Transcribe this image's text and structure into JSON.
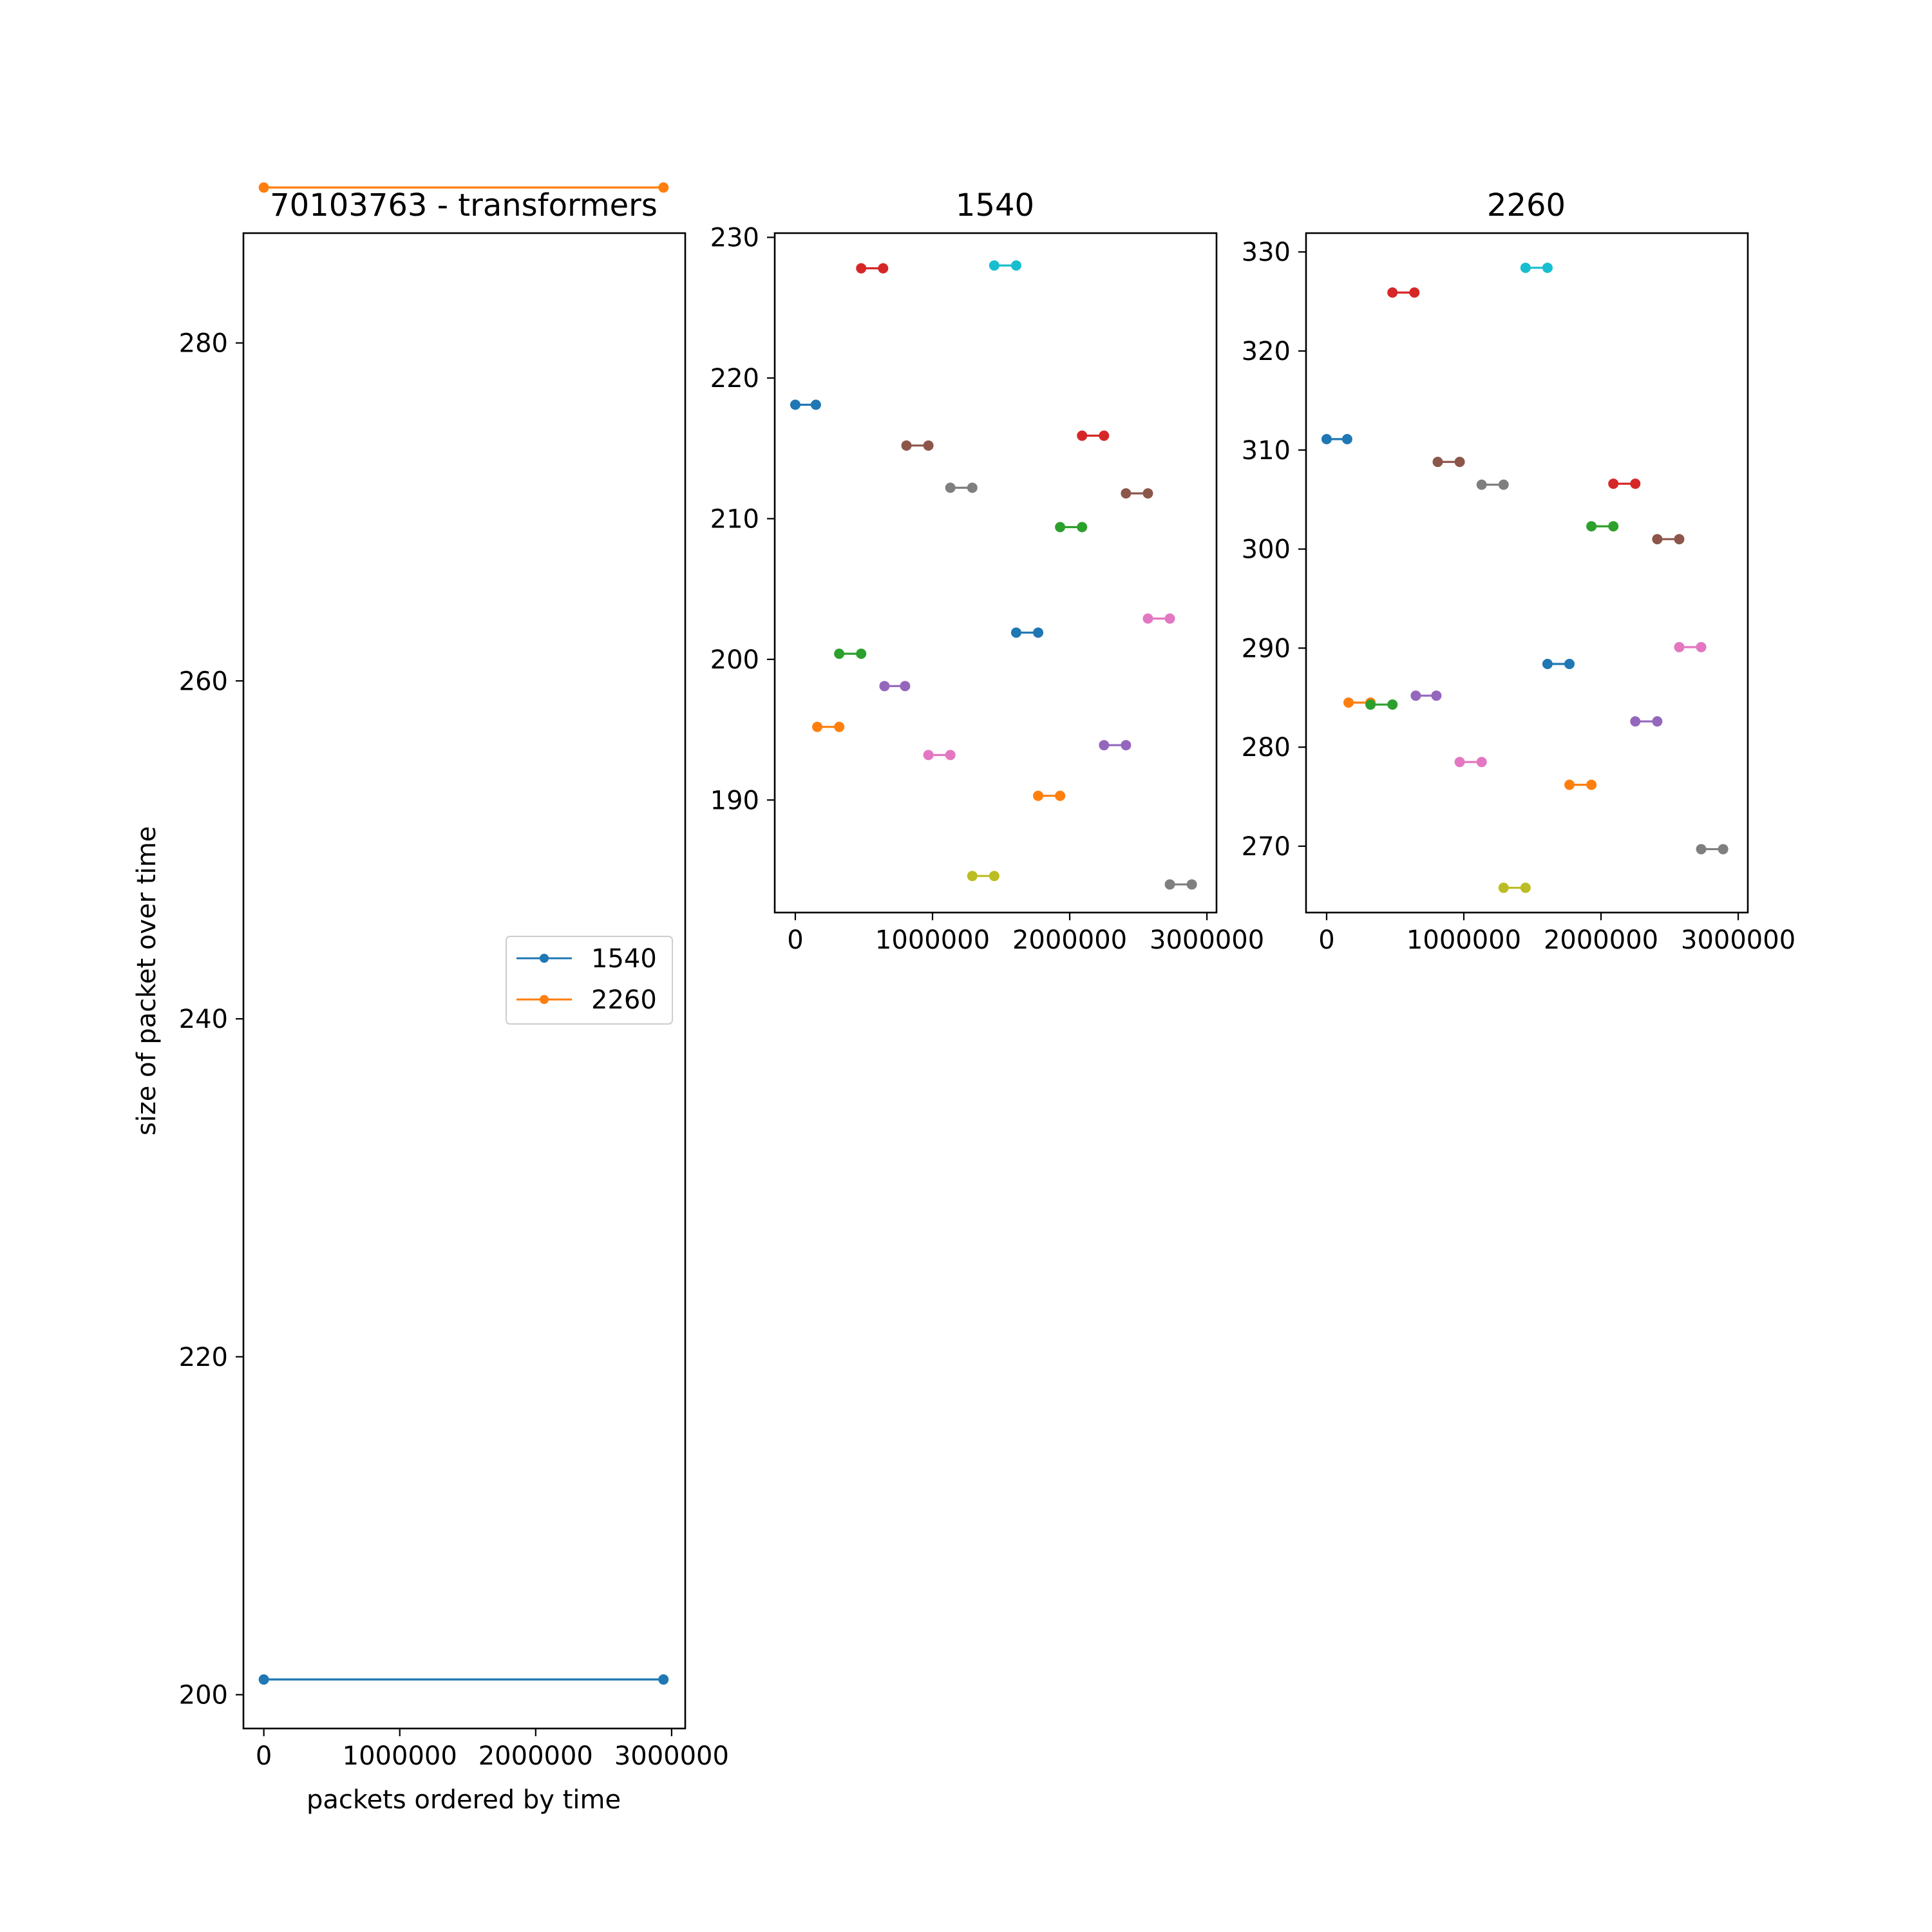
{
  "palette": [
    "#1f77b4",
    "#ff7f0e",
    "#2ca02c",
    "#d62728",
    "#9467bd",
    "#8c564b",
    "#e377c2",
    "#7f7f7f",
    "#bcbd22",
    "#17becf"
  ],
  "chart_data": [
    {
      "type": "line",
      "title": "70103763 - transformers",
      "xlabel": "packets ordered by time",
      "ylabel": "size of packet over time",
      "xlim": [
        -150000,
        3100000
      ],
      "ylim": [
        198,
        286.5
      ],
      "xticks": [
        0,
        1000000,
        2000000,
        3000000
      ],
      "xtick_labels": [
        "0",
        "1000000",
        "2000000",
        "3000000"
      ],
      "yticks": [
        200,
        220,
        240,
        260,
        280
      ],
      "ytick_labels": [
        "200",
        "220",
        "240",
        "260",
        "280"
      ],
      "grid": false,
      "legend": {
        "position": "center-right",
        "entries": [
          "1540",
          "2260"
        ]
      },
      "series": [
        {
          "name": "1540",
          "color": "#1f77b4",
          "x": [
            0,
            2940000
          ],
          "y": [
            200.9,
            200.9
          ]
        },
        {
          "name": "2260",
          "color": "#ff7f0e",
          "x": [
            0,
            2940000
          ],
          "y": [
            289.2,
            289.2
          ]
        }
      ]
    },
    {
      "type": "line",
      "title": "1540",
      "xlabel": "",
      "ylabel": "",
      "xlim": [
        -150000,
        3070000
      ],
      "ylim": [
        182,
        230.3
      ],
      "xticks": [
        0,
        1000000,
        2000000,
        3000000
      ],
      "xtick_labels": [
        "0",
        "1000000",
        "2000000",
        "3000000"
      ],
      "yticks": [
        190,
        200,
        210,
        220,
        230
      ],
      "ytick_labels": [
        "190",
        "200",
        "210",
        "220",
        "230"
      ],
      "grid": false,
      "segments": [
        {
          "x": [
            0,
            150000
          ],
          "y": [
            218.1,
            218.1
          ]
        },
        {
          "x": [
            160000,
            320000
          ],
          "y": [
            195.2,
            195.2
          ]
        },
        {
          "x": [
            320000,
            480000
          ],
          "y": [
            200.4,
            200.4
          ]
        },
        {
          "x": [
            480000,
            640000
          ],
          "y": [
            227.8,
            227.8
          ]
        },
        {
          "x": [
            650000,
            800000
          ],
          "y": [
            198.1,
            198.1
          ]
        },
        {
          "x": [
            810000,
            970000
          ],
          "y": [
            215.2,
            215.2
          ]
        },
        {
          "x": [
            970000,
            1130000
          ],
          "y": [
            193.2,
            193.2
          ]
        },
        {
          "x": [
            1130000,
            1290000
          ],
          "y": [
            212.2,
            212.2
          ]
        },
        {
          "x": [
            1290000,
            1450000
          ],
          "y": [
            184.6,
            184.6
          ]
        },
        {
          "x": [
            1450000,
            1610000
          ],
          "y": [
            228.0,
            228.0
          ]
        },
        {
          "x": [
            1610000,
            1770000
          ],
          "y": [
            201.9,
            201.9
          ]
        },
        {
          "x": [
            1770000,
            1930000
          ],
          "y": [
            190.3,
            190.3
          ]
        },
        {
          "x": [
            1930000,
            2090000
          ],
          "y": [
            209.4,
            209.4
          ]
        },
        {
          "x": [
            2090000,
            2250000
          ],
          "y": [
            215.9,
            215.9
          ]
        },
        {
          "x": [
            2250000,
            2410000
          ],
          "y": [
            193.9,
            193.9
          ]
        },
        {
          "x": [
            2410000,
            2570000
          ],
          "y": [
            211.8,
            211.8
          ]
        },
        {
          "x": [
            2570000,
            2730000
          ],
          "y": [
            202.9,
            202.9
          ]
        },
        {
          "x": [
            2730000,
            2890000
          ],
          "y": [
            184.0,
            184.0
          ]
        }
      ]
    },
    {
      "type": "line",
      "title": "2260",
      "xlabel": "",
      "ylabel": "",
      "xlim": [
        -150000,
        3070000
      ],
      "ylim": [
        263.3,
        331.9
      ],
      "xticks": [
        0,
        1000000,
        2000000,
        3000000
      ],
      "xtick_labels": [
        "0",
        "1000000",
        "2000000",
        "3000000"
      ],
      "yticks": [
        270,
        280,
        290,
        300,
        310,
        320,
        330
      ],
      "ytick_labels": [
        "270",
        "280",
        "290",
        "300",
        "310",
        "320",
        "330"
      ],
      "grid": false,
      "segments": [
        {
          "x": [
            0,
            150000
          ],
          "y": [
            311.1,
            311.1
          ]
        },
        {
          "x": [
            160000,
            320000
          ],
          "y": [
            284.5,
            284.5
          ]
        },
        {
          "x": [
            320000,
            480000
          ],
          "y": [
            284.3,
            284.3
          ]
        },
        {
          "x": [
            480000,
            640000
          ],
          "y": [
            325.9,
            325.9
          ]
        },
        {
          "x": [
            650000,
            800000
          ],
          "y": [
            285.2,
            285.2
          ]
        },
        {
          "x": [
            810000,
            970000
          ],
          "y": [
            308.8,
            308.8
          ]
        },
        {
          "x": [
            970000,
            1130000
          ],
          "y": [
            278.5,
            278.5
          ]
        },
        {
          "x": [
            1130000,
            1290000
          ],
          "y": [
            306.5,
            306.5
          ]
        },
        {
          "x": [
            1290000,
            1450000
          ],
          "y": [
            265.8,
            265.8
          ]
        },
        {
          "x": [
            1450000,
            1610000
          ],
          "y": [
            328.4,
            328.4
          ]
        },
        {
          "x": [
            1610000,
            1770000
          ],
          "y": [
            288.4,
            288.4
          ]
        },
        {
          "x": [
            1770000,
            1930000
          ],
          "y": [
            276.2,
            276.2
          ]
        },
        {
          "x": [
            1930000,
            2090000
          ],
          "y": [
            302.3,
            302.3
          ]
        },
        {
          "x": [
            2090000,
            2250000
          ],
          "y": [
            306.6,
            306.6
          ]
        },
        {
          "x": [
            2250000,
            2410000
          ],
          "y": [
            282.6,
            282.6
          ]
        },
        {
          "x": [
            2410000,
            2570000
          ],
          "y": [
            301.0,
            301.0
          ]
        },
        {
          "x": [
            2570000,
            2730000
          ],
          "y": [
            290.1,
            290.1
          ]
        },
        {
          "x": [
            2730000,
            2890000
          ],
          "y": [
            269.7,
            269.7
          ]
        }
      ]
    }
  ]
}
